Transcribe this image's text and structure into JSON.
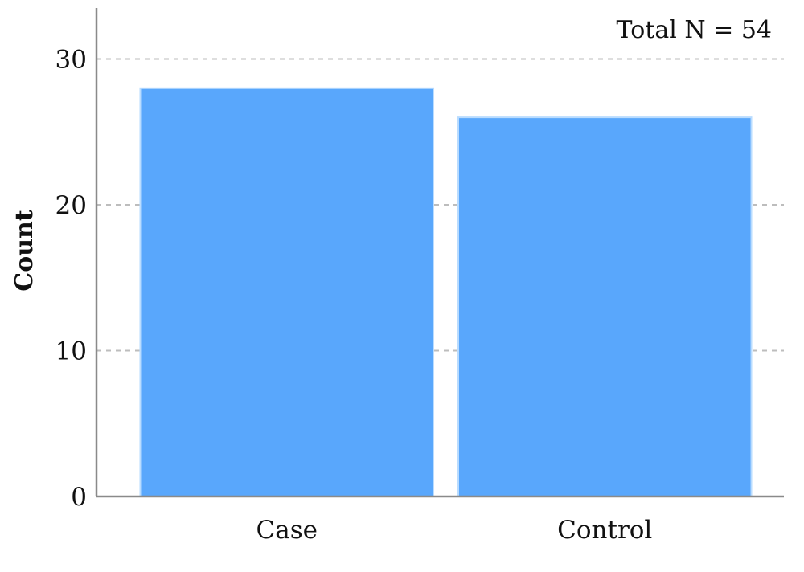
{
  "chart_data": {
    "type": "bar",
    "title": "",
    "xlabel": "",
    "ylabel": "Count",
    "categories": [
      "Case",
      "Control"
    ],
    "values": [
      28,
      26
    ],
    "ylim": [
      0,
      33.5
    ],
    "yticks": [
      0,
      10,
      20,
      30
    ],
    "grid": true,
    "annotation": "Total N = 54",
    "colors": {
      "bar": "#59a7fc",
      "bar_edge": "#b9dcff",
      "grid": "#bdbdbd",
      "axis": "#8a8a8a"
    }
  }
}
